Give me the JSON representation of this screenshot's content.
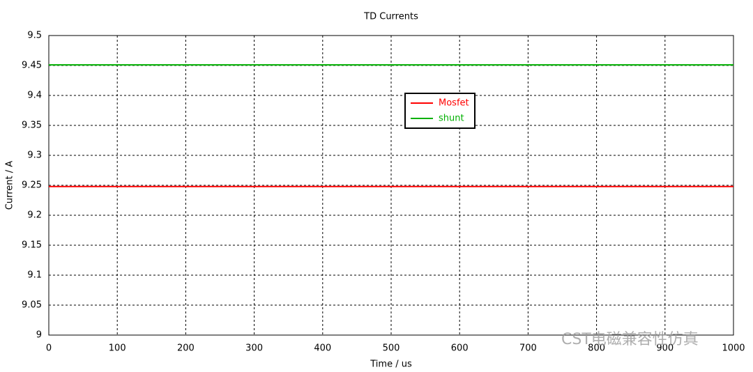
{
  "chart_data": {
    "type": "line",
    "title": "TD Currents",
    "x_label": "Time / us",
    "y_label": "Current / A",
    "x": [
      0,
      1000
    ],
    "series": [
      {
        "name": "Mosfet",
        "color": "#ff0000",
        "values": [
          9.248,
          9.248
        ]
      },
      {
        "name": "shunt",
        "color": "#00b000",
        "values": [
          9.451,
          9.451
        ]
      }
    ],
    "xlim": [
      0,
      1000
    ],
    "xticks": [
      0,
      100,
      200,
      300,
      400,
      500,
      600,
      700,
      800,
      900,
      1000
    ],
    "ylim": [
      9,
      9.5
    ],
    "yticks": [
      9,
      9.05,
      9.1,
      9.15,
      9.2,
      9.25,
      9.3,
      9.35,
      9.4,
      9.45,
      9.5
    ],
    "grid": true,
    "legend": "top",
    "watermark": "CST电磁兼容性仿真"
  }
}
